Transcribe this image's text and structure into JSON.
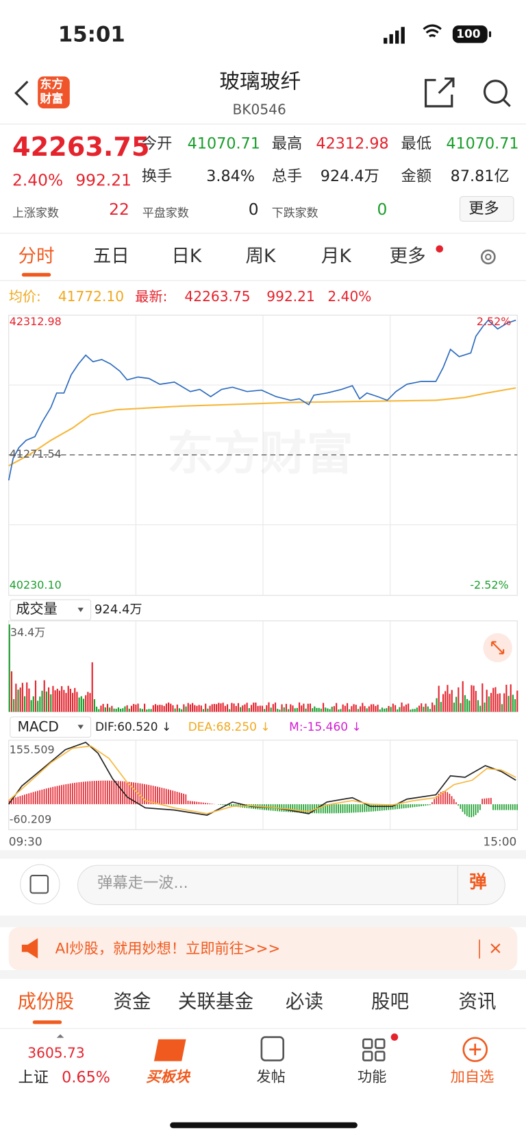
{
  "status": {
    "time": "15:01",
    "battery": "100"
  },
  "header": {
    "logo": [
      "东方",
      "财富"
    ],
    "title": "玻璃玻纤",
    "code": "BK0546"
  },
  "quote": {
    "price": "42263.75",
    "pct": "2.40%",
    "change": "992.21",
    "stats": [
      {
        "label": "今开",
        "value": "41070.71"
      },
      {
        "label": "最高",
        "value": "42312.98"
      },
      {
        "label": "最低",
        "value": "41070.71"
      },
      {
        "label": "换手",
        "value": "3.84%"
      },
      {
        "label": "总手",
        "value": "924.4万"
      },
      {
        "label": "金额",
        "value": "87.81亿"
      }
    ],
    "breadth": [
      {
        "label": "上涨家数",
        "value": "22"
      },
      {
        "label": "平盘家数",
        "value": "0"
      },
      {
        "label": "下跌家数",
        "value": "0"
      }
    ],
    "more": "更多"
  },
  "tabs": [
    "分时",
    "五日",
    "日K",
    "周K",
    "月K",
    "更多"
  ],
  "info": {
    "avg_label": "均价:",
    "avg": "41772.10",
    "last_label": "最新:",
    "last": "42263.75",
    "change": "992.21",
    "pct": "2.40%"
  },
  "chart": {
    "high": "42312.98",
    "high_pct": "2.52%",
    "pre_close": "41271.54",
    "low": "40230.10",
    "low_pct": "-2.52%",
    "watermark": "东方财富",
    "volume_label": "成交量",
    "volume_total": "924.4万",
    "volume_max": "34.4万",
    "macd_label": "MACD",
    "dif": "DIF:60.520 ↓",
    "dea": "DEA:68.250 ↓",
    "m": "M:-15.460 ↓",
    "macd_high": "155.509",
    "macd_low": "-60.209",
    "time_start": "09:30",
    "time_end": "15:00"
  },
  "danmu": {
    "placeholder": "弹幕走一波...",
    "button": "弹"
  },
  "banner": {
    "text": "AI炒股，就用妙想！立即前往>>>"
  },
  "bottom_tabs": [
    "成份股",
    "资金",
    "关联基金",
    "必读",
    "股吧",
    "资讯"
  ],
  "nav": {
    "index_price": "3605.73",
    "index_name": "上证",
    "index_pct": "0.65%",
    "items": [
      "买板块",
      "发帖",
      "功能",
      "加自选"
    ]
  }
}
